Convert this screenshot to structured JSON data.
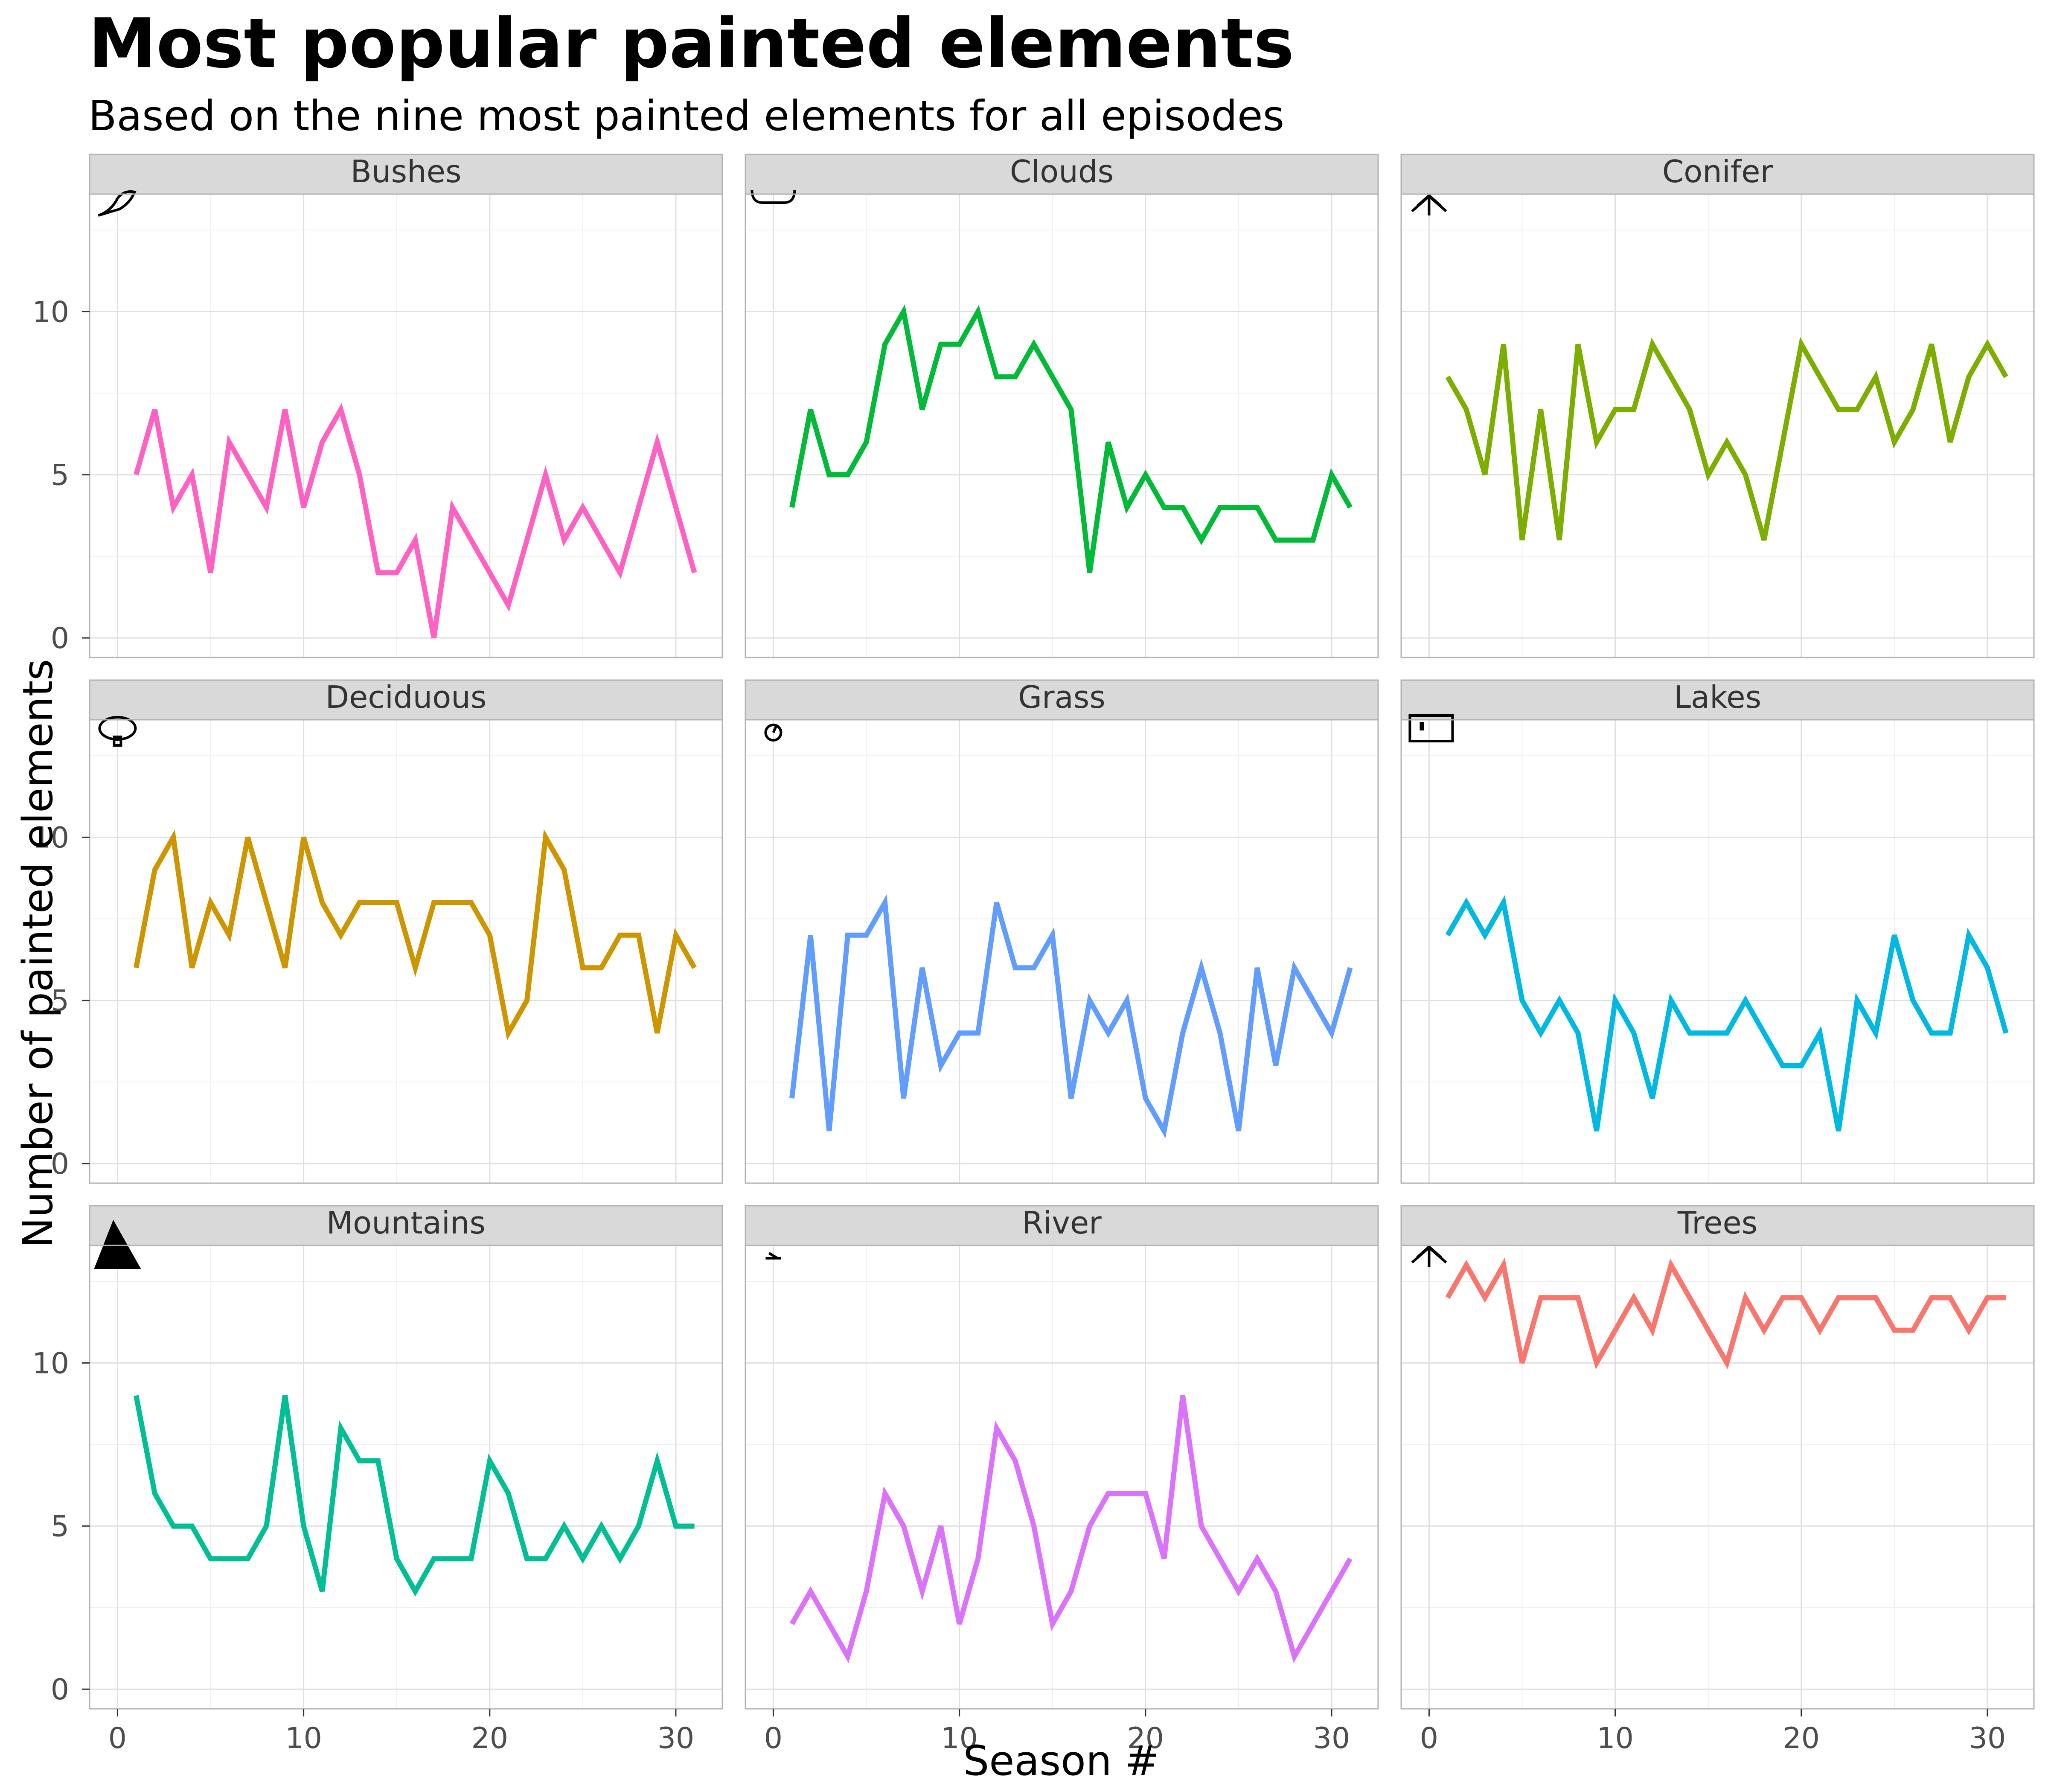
{
  "chart_data": {
    "type": "line",
    "title": "Most popular painted elements",
    "subtitle": "Based on the nine most painted elements for all episodes",
    "xlabel": "Season #",
    "ylabel": "Number of painted elements",
    "xlim": [
      -1.5,
      32.5
    ],
    "ylim": [
      -0.6,
      13.6
    ],
    "x_ticks": [
      0,
      10,
      20,
      30
    ],
    "y_ticks": [
      0,
      5,
      10
    ],
    "grid": true,
    "x": [
      1,
      2,
      3,
      4,
      5,
      6,
      7,
      8,
      9,
      10,
      11,
      12,
      13,
      14,
      15,
      16,
      17,
      18,
      19,
      20,
      21,
      22,
      23,
      24,
      25,
      26,
      27,
      28,
      29,
      30,
      31
    ],
    "series": [
      {
        "name": "Bushes",
        "icon": "bush-icon",
        "color": "#FF61C3",
        "values": [
          5,
          7,
          4,
          5,
          2,
          6,
          5,
          4,
          7,
          4,
          6,
          7,
          5,
          2,
          2,
          3,
          0,
          4,
          3,
          2,
          1,
          3,
          5,
          3,
          4,
          3,
          2,
          4,
          6,
          4,
          2
        ]
      },
      {
        "name": "Clouds",
        "icon": "cloud-icon",
        "color": "#00BA38",
        "values": [
          4,
          7,
          5,
          5,
          6,
          9,
          10,
          7,
          9,
          9,
          10,
          8,
          8,
          9,
          8,
          7,
          2,
          6,
          4,
          5,
          4,
          4,
          3,
          4,
          4,
          4,
          3,
          3,
          3,
          5,
          4
        ]
      },
      {
        "name": "Conifer",
        "icon": "conifer-icon",
        "color": "#7CAE00",
        "values": [
          8,
          7,
          5,
          9,
          3,
          7,
          3,
          9,
          6,
          7,
          7,
          9,
          8,
          7,
          5,
          6,
          5,
          3,
          6,
          9,
          8,
          7,
          7,
          8,
          6,
          7,
          9,
          6,
          8,
          9,
          8
        ]
      },
      {
        "name": "Deciduous",
        "icon": "deciduous-tree-icon",
        "color": "#CD9600",
        "values": [
          6,
          9,
          10,
          6,
          8,
          7,
          10,
          8,
          6,
          10,
          8,
          7,
          8,
          8,
          8,
          6,
          8,
          8,
          8,
          7,
          4,
          5,
          10,
          9,
          6,
          6,
          7,
          7,
          4,
          7,
          6
        ]
      },
      {
        "name": "Grass",
        "icon": "grass-icon",
        "color": "#619CFF",
        "values": [
          2,
          7,
          1,
          7,
          7,
          8,
          2,
          6,
          3,
          4,
          4,
          8,
          6,
          6,
          7,
          2,
          5,
          4,
          5,
          2,
          1,
          4,
          6,
          4,
          1,
          6,
          3,
          6,
          5,
          4,
          6
        ]
      },
      {
        "name": "Lakes",
        "icon": "lake-icon",
        "color": "#00B9E3",
        "values": [
          7,
          8,
          7,
          8,
          5,
          4,
          5,
          4,
          1,
          5,
          4,
          2,
          5,
          4,
          4,
          4,
          5,
          4,
          3,
          3,
          4,
          1,
          5,
          4,
          7,
          5,
          4,
          4,
          7,
          6,
          4
        ]
      },
      {
        "name": "Mountains",
        "icon": "mountain-icon",
        "color": "#00BF94",
        "values": [
          9,
          6,
          5,
          5,
          4,
          4,
          4,
          5,
          9,
          5,
          3,
          8,
          7,
          7,
          4,
          3,
          4,
          4,
          4,
          7,
          6,
          4,
          4,
          5,
          4,
          5,
          4,
          5,
          7,
          5,
          5
        ]
      },
      {
        "name": "River",
        "icon": "river-icon",
        "color": "#DB72FB",
        "values": [
          2,
          3,
          2,
          1,
          3,
          6,
          5,
          3,
          5,
          2,
          4,
          8,
          7,
          5,
          2,
          3,
          5,
          6,
          6,
          6,
          4,
          9,
          5,
          4,
          3,
          4,
          3,
          1,
          2,
          3,
          4
        ]
      },
      {
        "name": "Trees",
        "icon": "tree-icon",
        "color": "#F8766D",
        "values": [
          12,
          13,
          12,
          13,
          10,
          12,
          12,
          12,
          10,
          11,
          12,
          11,
          13,
          12,
          11,
          10,
          12,
          11,
          12,
          12,
          11,
          12,
          12,
          12,
          11,
          11,
          12,
          12,
          11,
          12,
          12
        ]
      }
    ]
  }
}
